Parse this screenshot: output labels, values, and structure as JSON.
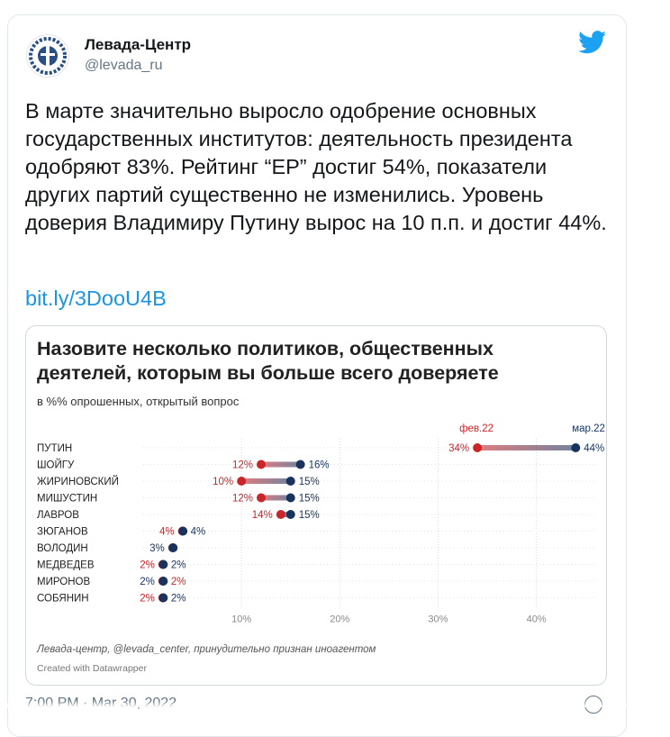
{
  "tweet": {
    "author_name": "Левада-Центр",
    "author_handle": "@levada_ru",
    "text": "В марте значительно выросло одобрение основных государственных институтов: деятельность президента одобряют 83%. Рейтинг “ЕР” достиг 54%, показатели других партий существенно не изменились. Уровень доверия Владимиру Путину вырос на 10 п.п. и достиг 44%.",
    "link": "bit.ly/3DooU4B",
    "timestamp": "7:00 PM · Mar 30, 2022"
  },
  "icons": {
    "avatar": "levada-logo-icon",
    "brand": "twitter-bird-icon",
    "info": "info-icon"
  },
  "colors": {
    "feb": "#c9262c",
    "mar": "#17335e",
    "link": "#1b95e0"
  },
  "chart": {
    "source": "Левада-центр, @levada_center, принудительно признан иноагентом",
    "credit": "Created with Datawrapper"
  },
  "chart_data": {
    "type": "dumbbell",
    "title": "Назовите несколько политиков, общественных деятелей, которым вы больше всего доверяете",
    "subtitle": "в %% опрошенных, открытый вопрос",
    "series": [
      {
        "name": "фев.22",
        "values": [
          34,
          12,
          10,
          12,
          14,
          4,
          3,
          2,
          2,
          2
        ]
      },
      {
        "name": "мар.22",
        "values": [
          44,
          16,
          15,
          15,
          15,
          4,
          3,
          2,
          2,
          2
        ]
      }
    ],
    "categories": [
      "ПУТИН",
      "ШОЙГУ",
      "ЖИРИНОВСКИЙ",
      "МИШУСТИН",
      "ЛАВРОВ",
      "ЗЮГАНОВ",
      "ВОЛОДИН",
      "МЕДВЕДЕВ",
      "МИРОНОВ",
      "СОБЯНИН"
    ],
    "x_ticks": [
      "10%",
      "20%",
      "30%",
      "40%"
    ],
    "xlim": [
      0,
      47
    ]
  }
}
